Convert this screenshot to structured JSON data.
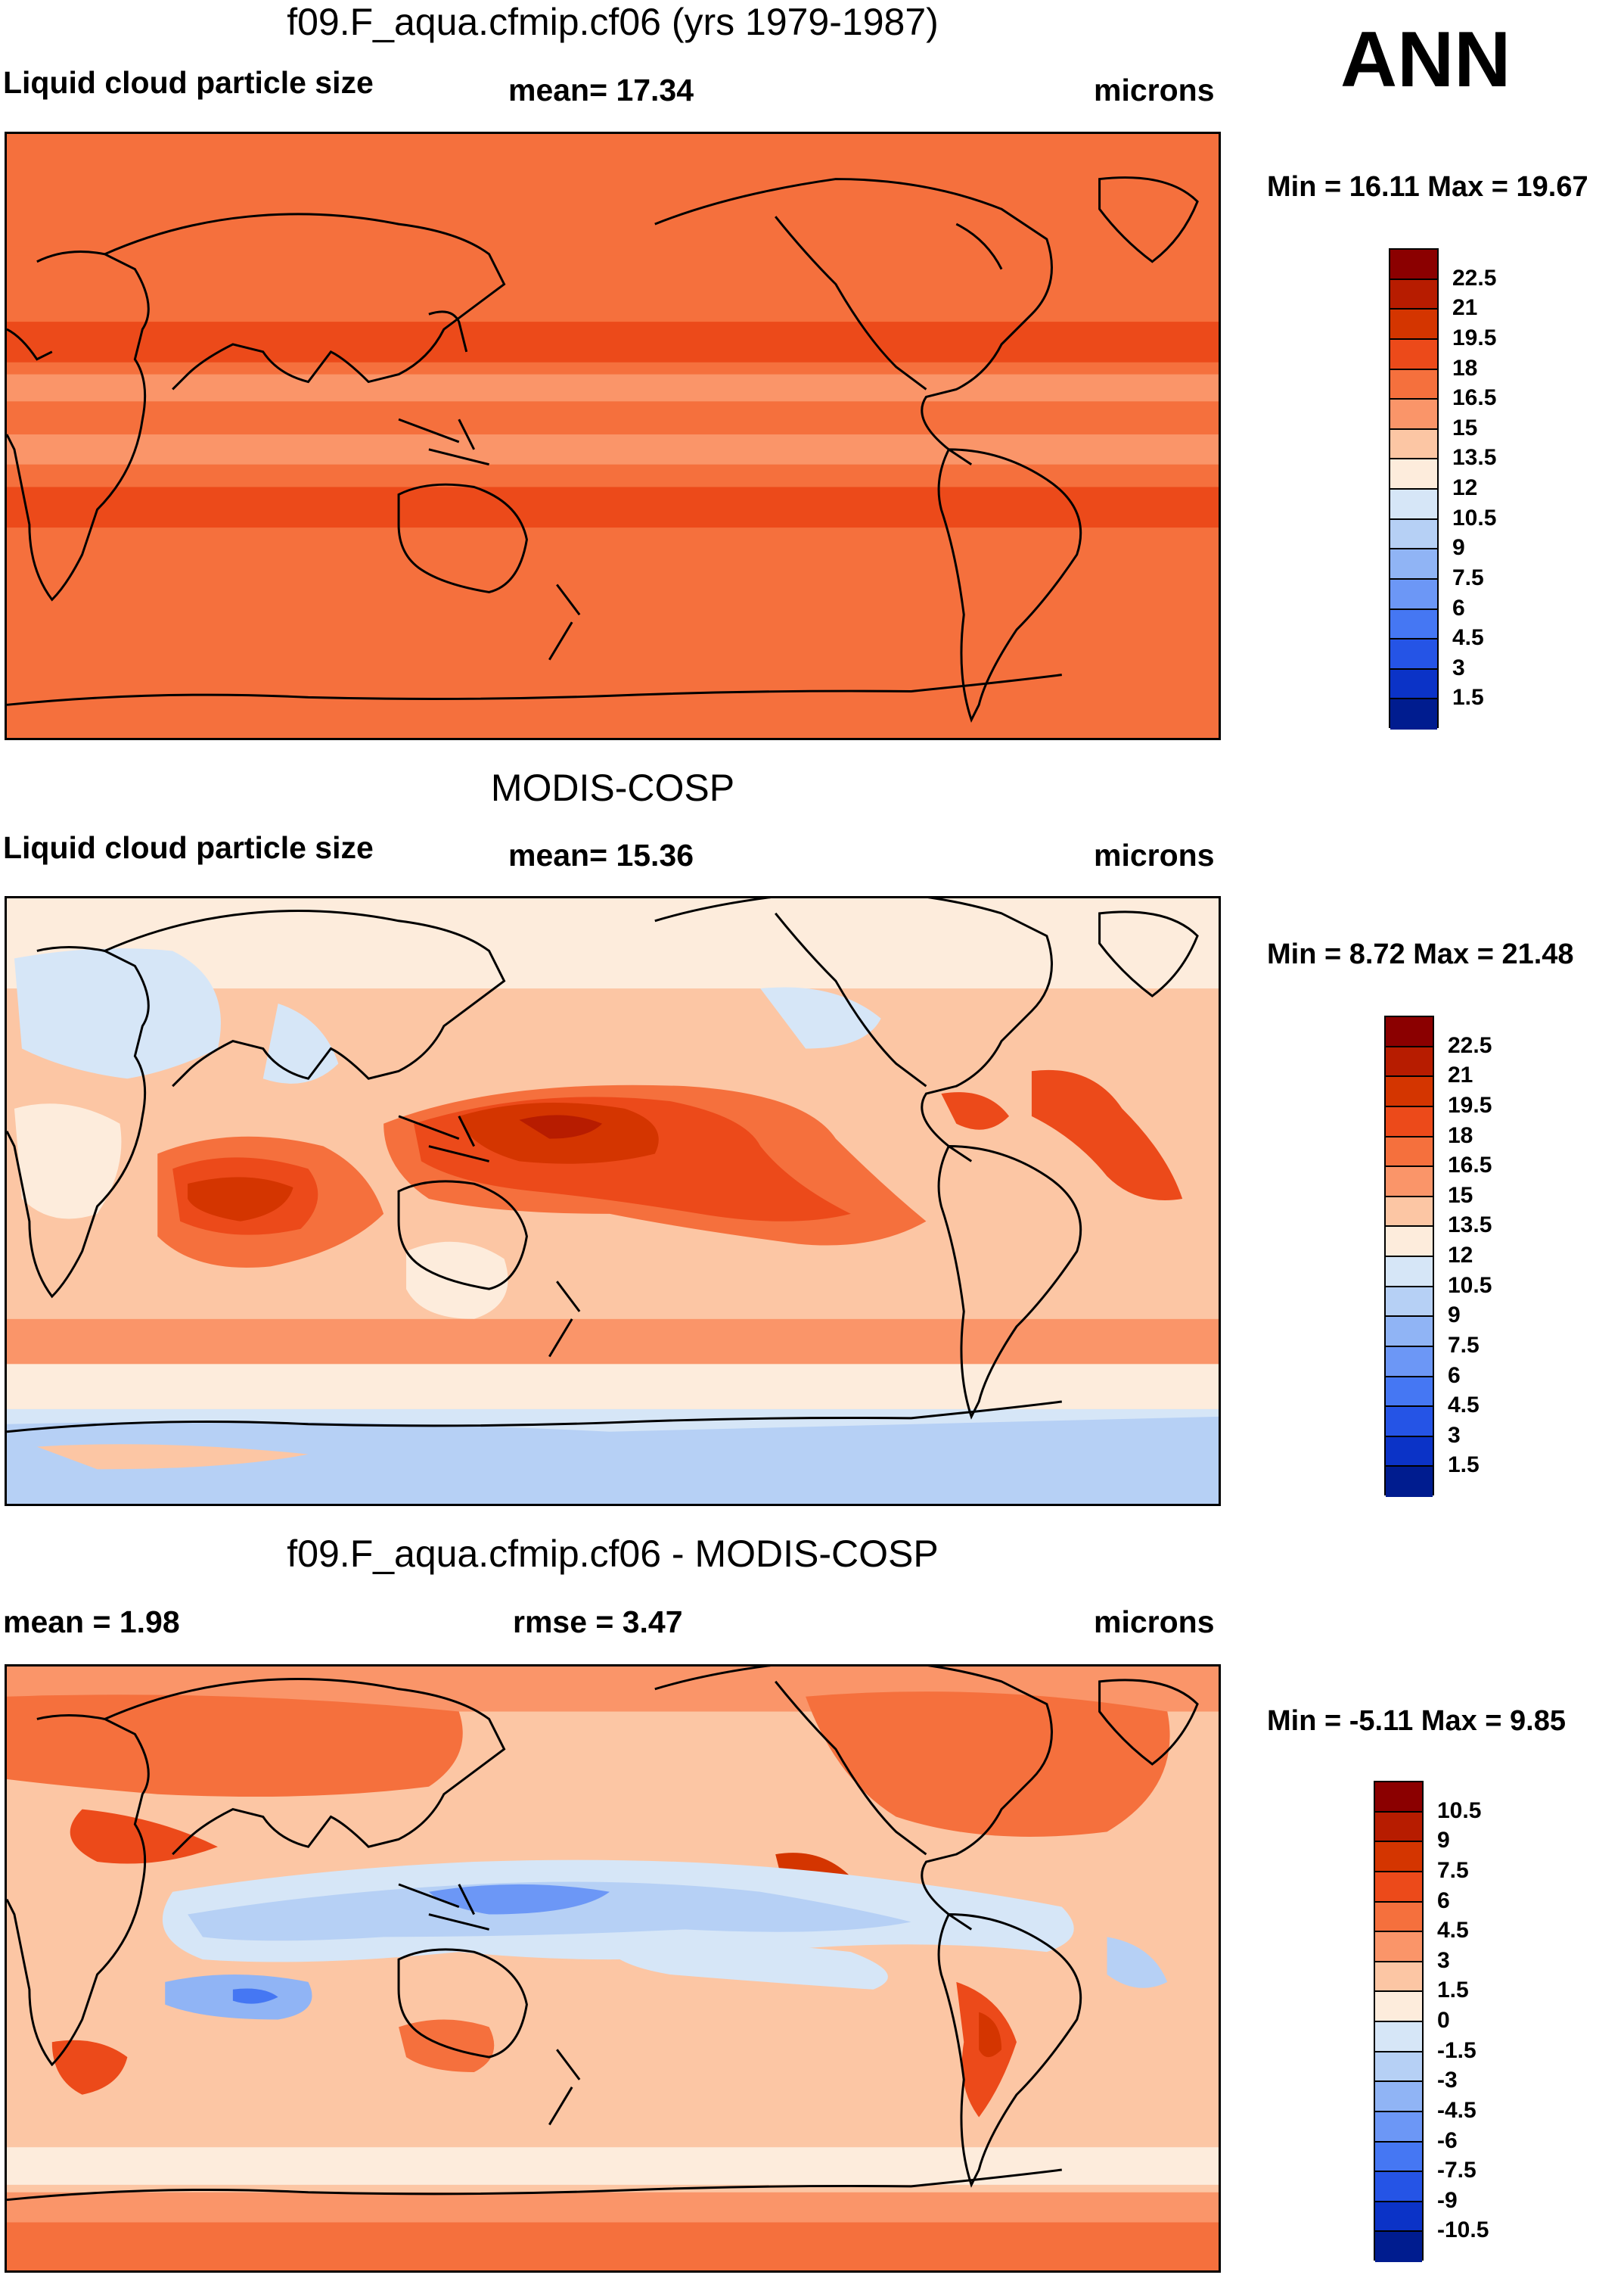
{
  "season_label": "ANN",
  "panels": [
    {
      "title": "f09.F_aqua.cfmip.cf06 (yrs 1979-1987)",
      "left_label": "Liquid cloud particle size",
      "center_label": "mean=  17.34",
      "right_label": "microns",
      "minmax": "Min =  16.11 Max =  19.67"
    },
    {
      "title": "MODIS-COSP",
      "left_label": "Liquid cloud particle size",
      "center_label": "mean=  15.36",
      "right_label": "microns",
      "minmax": "Min =   8.72 Max =  21.48"
    },
    {
      "title": "f09.F_aqua.cfmip.cf06 - MODIS-COSP",
      "left_label": "mean =   1.98",
      "center_label": "rmse =   3.47",
      "right_label": "microns",
      "minmax": "Min =  -5.11 Max =   9.85"
    }
  ],
  "colorbars": {
    "absolute": {
      "labels": [
        "22.5",
        "21",
        "19.5",
        "18",
        "16.5",
        "15",
        "13.5",
        "12",
        "10.5",
        "9",
        "7.5",
        "6",
        "4.5",
        "3",
        "1.5"
      ],
      "colors": [
        "#8b0000",
        "#b71c00",
        "#d43500",
        "#ec4a1a",
        "#f5703d",
        "#fa9569",
        "#fcc6a4",
        "#fdecdc",
        "#d6e6f7",
        "#b6d0f5",
        "#90b4f5",
        "#6c97f6",
        "#4577f3",
        "#2554e6",
        "#0b33c7",
        "#001c8f"
      ]
    },
    "difference": {
      "labels": [
        "10.5",
        "9",
        "7.5",
        "6",
        "4.5",
        "3",
        "1.5",
        "0",
        "-1.5",
        "-3",
        "-4.5",
        "-6",
        "-7.5",
        "-9",
        "-10.5"
      ],
      "colors": [
        "#8b0000",
        "#b71c00",
        "#d43500",
        "#ec4a1a",
        "#f5703d",
        "#fa9569",
        "#fcc6a4",
        "#fdecdc",
        "#d6e6f7",
        "#b6d0f5",
        "#90b4f5",
        "#6c97f6",
        "#4577f3",
        "#2554e6",
        "#0b33c7",
        "#001c8f"
      ]
    }
  },
  "chart_data": [
    {
      "type": "heatmap",
      "title": "f09.F_aqua.cfmip.cf06 (yrs 1979-1987)",
      "variable": "Liquid cloud particle size",
      "units": "microns",
      "mean": 17.34,
      "min": 16.11,
      "max": 19.67,
      "levels": [
        1.5,
        3,
        4.5,
        6,
        7.5,
        9,
        10.5,
        12,
        13.5,
        15,
        16.5,
        18,
        19.5,
        21,
        22.5
      ],
      "zonal_bands": [
        {
          "lat": [
            90,
            40
          ],
          "value": 17.3
        },
        {
          "lat": [
            40,
            30
          ],
          "value": 18.6
        },
        {
          "lat": [
            30,
            20
          ],
          "value": 17.3
        },
        {
          "lat": [
            20,
            15
          ],
          "value": 16.2
        },
        {
          "lat": [
            15,
            3
          ],
          "value": 17.3
        },
        {
          "lat": [
            3,
            -3
          ],
          "value": 16.2
        },
        {
          "lat": [
            -3,
            -20
          ],
          "value": 17.3
        },
        {
          "lat": [
            -20,
            -35
          ],
          "value": 18.6
        },
        {
          "lat": [
            -35,
            -90
          ],
          "value": 17.3
        }
      ]
    },
    {
      "type": "heatmap",
      "title": "MODIS-COSP",
      "variable": "Liquid cloud particle size",
      "units": "microns",
      "mean": 15.36,
      "min": 8.72,
      "max": 21.48,
      "levels": [
        1.5,
        3,
        4.5,
        6,
        7.5,
        9,
        10.5,
        12,
        13.5,
        15,
        16.5,
        18,
        19.5,
        21,
        22.5
      ]
    },
    {
      "type": "heatmap",
      "title": "f09.F_aqua.cfmip.cf06 - MODIS-COSP",
      "units": "microns",
      "mean": 1.98,
      "rmse": 3.47,
      "min": -5.11,
      "max": 9.85,
      "levels": [
        -10.5,
        -9,
        -7.5,
        -6,
        -4.5,
        -3,
        -1.5,
        0,
        1.5,
        3,
        4.5,
        6,
        7.5,
        9,
        10.5
      ]
    }
  ]
}
